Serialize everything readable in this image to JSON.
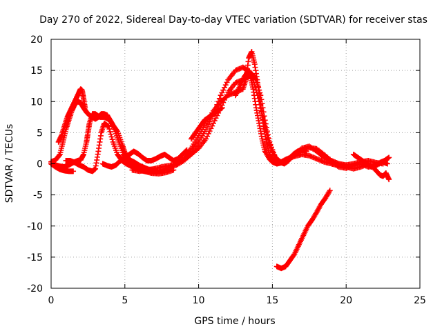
{
  "chart_data": {
    "type": "scatter",
    "title": "Day 270 of 2022, Sidereal Day-to-day VTEC variation (SDTVAR) for receiver stas",
    "xlabel": "GPS time / hours",
    "ylabel": "SDTVAR / TECUs",
    "xlim": [
      0,
      25
    ],
    "ylim": [
      -20,
      20
    ],
    "xticks": [
      0,
      5,
      10,
      15,
      20,
      25
    ],
    "yticks": [
      -20,
      -15,
      -10,
      -5,
      0,
      5,
      10,
      15,
      20
    ],
    "grid": true,
    "marker": "+",
    "series": [
      {
        "name": "SDTVAR",
        "color": "#ff0000",
        "segments": [
          {
            "x": [
              0.0,
              0.3,
              0.6,
              0.8,
              1.0,
              1.2,
              1.4,
              1.6,
              1.8,
              2.0,
              2.2,
              2.4,
              2.6,
              2.8,
              3.0,
              3.2,
              3.4,
              3.6,
              3.8,
              4.0,
              4.2,
              4.5,
              4.8,
              5.0,
              5.2,
              5.4,
              5.6,
              5.8,
              6.0,
              6.3,
              6.6,
              7.0
            ],
            "y": [
              0.3,
              0.6,
              1.5,
              3.5,
              5.5,
              7.0,
              8.5,
              9.5,
              10.0,
              9.8,
              9.0,
              8.3,
              7.8,
              7.5,
              7.2,
              7.5,
              8.0,
              8.0,
              7.8,
              7.0,
              6.2,
              5.2,
              3.2,
              1.8,
              1.0,
              0.5,
              0.3,
              0.0,
              -0.3,
              -0.6,
              -0.9,
              -1.0
            ]
          },
          {
            "x": [
              0.5,
              0.7,
              0.9,
              1.1,
              1.3,
              1.5,
              1.7,
              1.9,
              2.0,
              2.1,
              2.2,
              2.3
            ],
            "y": [
              3.5,
              4.5,
              6.0,
              7.5,
              8.5,
              9.5,
              10.5,
              11.5,
              12.0,
              11.8,
              10.5,
              9.0
            ]
          },
          {
            "x": [
              0.0,
              0.3,
              0.6,
              0.9,
              1.2,
              1.5,
              1.8,
              2.0,
              2.2,
              2.4,
              2.5,
              2.6,
              2.8,
              3.0,
              3.3,
              3.6,
              4.0,
              4.3,
              4.6,
              4.9,
              5.1,
              5.4,
              5.7,
              6.0,
              6.4,
              6.8,
              7.2
            ],
            "y": [
              0.0,
              -0.2,
              -0.4,
              -0.5,
              -0.2,
              0.2,
              0.5,
              0.6,
              1.5,
              3.5,
              5.0,
              6.5,
              8.0,
              8.0,
              7.5,
              7.5,
              7.0,
              5.5,
              3.5,
              1.5,
              0.5,
              0.0,
              -0.5,
              -1.0,
              -1.2,
              -1.3,
              -1.3
            ]
          },
          {
            "x": [
              0.0,
              0.3,
              0.6,
              0.9,
              1.2,
              1.5
            ],
            "y": [
              0.0,
              -0.5,
              -0.9,
              -1.1,
              -1.2,
              -1.2
            ]
          },
          {
            "x": [
              1.0,
              1.3,
              1.6,
              1.9,
              2.2,
              2.5,
              2.8,
              3.0,
              3.2,
              3.4,
              3.6,
              3.9,
              4.2,
              4.5,
              4.8,
              5.1,
              5.5,
              5.9,
              6.3,
              6.8,
              7.3,
              7.8,
              8.3
            ],
            "y": [
              0.5,
              0.5,
              0.2,
              -0.2,
              -0.5,
              -1.0,
              -1.2,
              -0.8,
              2.0,
              5.0,
              6.5,
              6.0,
              3.5,
              1.5,
              0.5,
              0.0,
              -0.5,
              -0.9,
              -1.2,
              -1.5,
              -1.6,
              -1.4,
              -1.0
            ]
          },
          {
            "x": [
              3.5,
              3.8,
              4.1,
              4.4,
              4.7,
              5.0,
              5.3,
              5.6,
              5.9,
              6.2,
              6.5,
              6.8,
              7.1,
              7.4,
              7.7,
              8.0,
              8.3,
              8.6,
              8.9,
              9.2
            ],
            "y": [
              0.0,
              -0.3,
              -0.5,
              -0.2,
              0.5,
              1.0,
              1.5,
              2.0,
              1.6,
              1.0,
              0.5,
              0.5,
              0.8,
              1.2,
              1.5,
              1.0,
              0.5,
              0.8,
              1.5,
              2.2
            ]
          },
          {
            "x": [
              5.5,
              6.0,
              6.5,
              7.0,
              7.5,
              8.0,
              8.5,
              9.0,
              9.5,
              10.0,
              10.5,
              11.0,
              11.5,
              12.0,
              12.5,
              13.0,
              13.3,
              13.5,
              13.7,
              13.9,
              14.1,
              14.3,
              14.5,
              14.8,
              15.0,
              15.3,
              15.6,
              16.0,
              16.5,
              17.0,
              17.5,
              18.0,
              18.5,
              19.0,
              19.5,
              20.0
            ],
            "y": [
              -1.0,
              -1.2,
              -1.0,
              -0.8,
              -0.5,
              -0.3,
              0.0,
              0.8,
              2.0,
              3.5,
              5.5,
              8.0,
              11.0,
              13.5,
              15.0,
              15.5,
              15.0,
              14.0,
              12.0,
              9.0,
              6.5,
              4.0,
              2.0,
              0.8,
              0.3,
              0.0,
              0.3,
              0.8,
              1.2,
              1.5,
              1.3,
              0.8,
              0.3,
              0.0,
              -0.3,
              -0.3
            ]
          },
          {
            "x": [
              7.0,
              7.5,
              8.0,
              8.5,
              9.0,
              9.5,
              10.0,
              10.5,
              11.0,
              11.5,
              12.0,
              12.5,
              13.0,
              13.3,
              13.6,
              13.9,
              14.2,
              14.5,
              14.8,
              15.2,
              15.6,
              16.0,
              16.5,
              17.0,
              17.5,
              18.0,
              18.5,
              19.0,
              19.5,
              20.0,
              20.5,
              21.0,
              21.5,
              22.0,
              22.5
            ],
            "y": [
              -1.2,
              -1.0,
              -0.6,
              -0.2,
              0.5,
              1.5,
              2.5,
              4.0,
              6.5,
              9.0,
              11.5,
              13.0,
              13.5,
              14.0,
              14.5,
              13.5,
              11.0,
              7.0,
              3.5,
              1.0,
              0.2,
              0.5,
              1.3,
              2.2,
              2.6,
              2.4,
              1.5,
              0.5,
              0.0,
              -0.2,
              0.0,
              0.3,
              0.5,
              0.2,
              0.0
            ]
          },
          {
            "x": [
              9.0,
              9.5,
              10.0,
              10.5,
              11.0,
              11.5,
              12.0,
              12.5,
              13.0,
              13.2,
              13.4,
              13.6,
              13.8,
              14.0,
              14.2,
              14.4,
              14.6,
              14.8,
              15.0,
              15.3,
              15.7,
              16.0,
              16.5,
              17.0,
              17.5,
              18.0,
              18.5,
              19.0,
              19.5,
              20.0,
              20.5,
              21.0,
              21.5,
              22.0,
              22.5,
              22.8
            ],
            "y": [
              1.0,
              2.5,
              4.5,
              6.5,
              8.5,
              10.0,
              11.0,
              11.5,
              12.0,
              13.5,
              17.0,
              18.0,
              16.0,
              13.0,
              9.5,
              6.0,
              3.5,
              1.5,
              0.5,
              0.0,
              0.2,
              0.7,
              1.5,
              2.5,
              2.8,
              2.0,
              1.0,
              0.3,
              -0.5,
              -0.7,
              -0.3,
              0.0,
              -0.5,
              -0.3,
              0.3,
              0.0
            ]
          },
          {
            "x": [
              9.5,
              9.8,
              10.1,
              10.4,
              10.7,
              11.0,
              11.3,
              11.6
            ],
            "y": [
              4.0,
              5.0,
              6.0,
              7.0,
              7.5,
              8.0,
              8.5,
              9.0
            ]
          },
          {
            "x": [
              12.5,
              12.8,
              13.1,
              13.4,
              13.7,
              14.0,
              14.3,
              14.6,
              14.9,
              15.2,
              15.5,
              15.8,
              16.1,
              16.4,
              16.7,
              17.0,
              17.3
            ],
            "y": [
              11.0,
              12.5,
              14.0,
              15.0,
              13.5,
              11.0,
              8.0,
              5.0,
              2.5,
              1.0,
              0.3,
              0.0,
              0.5,
              1.5,
              2.0,
              2.2,
              2.0
            ]
          },
          {
            "x": [
              19.0,
              19.5,
              20.0,
              20.5,
              21.0,
              21.5,
              22.0,
              22.3,
              22.5,
              22.7,
              22.9
            ],
            "y": [
              0.5,
              0.0,
              -0.5,
              -0.8,
              -0.5,
              0.0,
              -1.0,
              -1.8,
              -2.0,
              -1.5,
              -2.5
            ]
          },
          {
            "x": [
              20.5,
              20.8,
              21.1,
              21.4,
              21.7,
              22.0,
              22.3,
              22.6,
              22.9
            ],
            "y": [
              1.5,
              1.0,
              0.5,
              0.0,
              -0.5,
              -0.3,
              0.2,
              0.5,
              1.0
            ]
          },
          {
            "x": [
              15.3,
              15.6,
              15.9,
              16.2,
              16.5,
              16.8,
              17.1,
              17.4,
              17.7,
              18.0,
              18.3,
              18.6,
              18.9
            ],
            "y": [
              -16.5,
              -16.8,
              -16.5,
              -15.5,
              -14.5,
              -13.0,
              -11.5,
              -10.0,
              -9.0,
              -7.8,
              -6.5,
              -5.5,
              -4.3
            ]
          }
        ]
      }
    ]
  }
}
